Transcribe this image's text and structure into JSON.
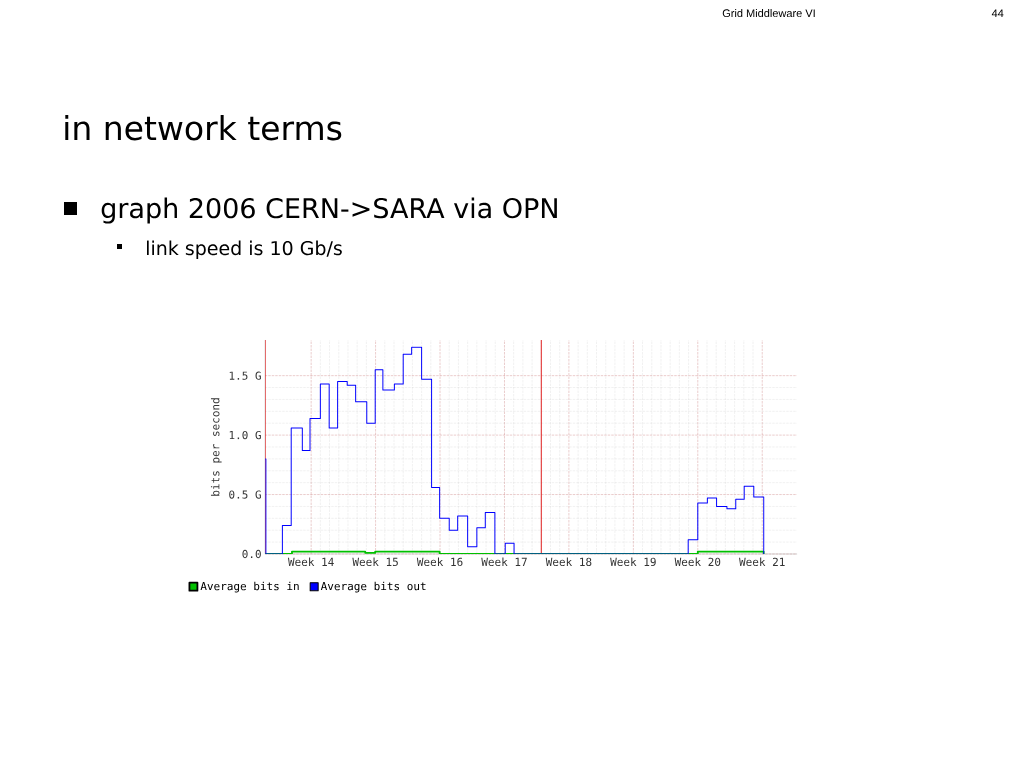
{
  "chart_data": {
    "type": "step",
    "title": "in network terms",
    "subtitle": "graph 2006 CERN->SARA via OPN",
    "annotations": [
      "link speed is 10 Gb/s",
      "Grid Middleware VI",
      "44"
    ],
    "ylabel": "bits per second",
    "xlim": [
      "2006-04-01T00:00",
      "2006-05-28T19:00"
    ],
    "ylim": [
      0,
      1.8
    ],
    "xticks": [
      {
        "value": "2006-04-06",
        "label": "Week 14"
      },
      {
        "value": "2006-04-13",
        "label": "Week 15"
      },
      {
        "value": "2006-04-20",
        "label": "Week 16"
      },
      {
        "value": "2006-04-27",
        "label": "Week 17"
      },
      {
        "value": "2006-05-04",
        "label": "Week 18"
      },
      {
        "value": "2006-05-11",
        "label": "Week 19"
      },
      {
        "value": "2006-05-18",
        "label": "Week 20"
      },
      {
        "value": "2006-05-25",
        "label": "Week 21"
      }
    ],
    "yticks": [
      {
        "value": 0,
        "label": "0.0"
      },
      {
        "value": 0.5,
        "label": "0.5 G"
      },
      {
        "value": 1,
        "label": "1.0 G"
      },
      {
        "value": 1.5,
        "label": "1.5 G"
      }
    ],
    "grid": true,
    "legend": "bottom",
    "ref_lines": [
      {
        "axis": "x",
        "value": "2006-04-01",
        "color": "#e02020"
      },
      {
        "axis": "x",
        "value": "2006-05-01",
        "color": "#e02020"
      }
    ],
    "series": [
      {
        "name": "Average bits in",
        "color": "#00c000",
        "x": [
          "2006-04-01T00:00",
          "2006-04-03T22:00",
          "2006-04-11T21:00",
          "2006-04-12T23:00",
          "2006-04-19T23:00",
          "2006-05-18T00:00",
          "2006-05-25T04:00"
        ],
        "values": [
          0,
          0.02,
          0.01,
          0.02,
          0,
          0.02,
          0
        ]
      },
      {
        "name": "Average bits out",
        "color": "#0000ff",
        "x": [
          "2006-04-01T00:00",
          "2006-04-01T02:00",
          "2006-04-02T21:00",
          "2006-04-03T20:00",
          "2006-04-05T01:00",
          "2006-04-05T21:00",
          "2006-04-07T00:00",
          "2006-04-07T23:00",
          "2006-04-08T21:00",
          "2006-04-09T22:00",
          "2006-04-10T20:00",
          "2006-04-12T01:00",
          "2006-04-12T23:00",
          "2006-04-13T19:00",
          "2006-04-15T01:00",
          "2006-04-16T00:00",
          "2006-04-16T22:00",
          "2006-04-18T00:00",
          "2006-04-19T02:00",
          "2006-04-19T23:00",
          "2006-04-21T00:00",
          "2006-04-21T22:00",
          "2006-04-23T00:00",
          "2006-04-24T00:00",
          "2006-04-24T22:00",
          "2006-04-25T23:00",
          "2006-04-27T02:00",
          "2006-04-28T01:00",
          "2006-05-16T23:00",
          "2006-05-18T00:00",
          "2006-05-19T01:00",
          "2006-05-20T01:00",
          "2006-05-21T04:00",
          "2006-05-22T03:00",
          "2006-05-23T01:00",
          "2006-05-24T02:00",
          "2006-05-25T04:00"
        ],
        "values": [
          0.8,
          0,
          0.24,
          1.06,
          0.87,
          1.14,
          1.43,
          1.06,
          1.45,
          1.42,
          1.28,
          1.1,
          1.55,
          1.38,
          1.43,
          1.68,
          1.74,
          1.47,
          0.56,
          0.3,
          0.2,
          0.32,
          0.06,
          0.22,
          0.35,
          0,
          0.09,
          0,
          0.12,
          0.43,
          0.47,
          0.4,
          0.38,
          0.46,
          0.57,
          0.48,
          0
        ]
      }
    ]
  }
}
